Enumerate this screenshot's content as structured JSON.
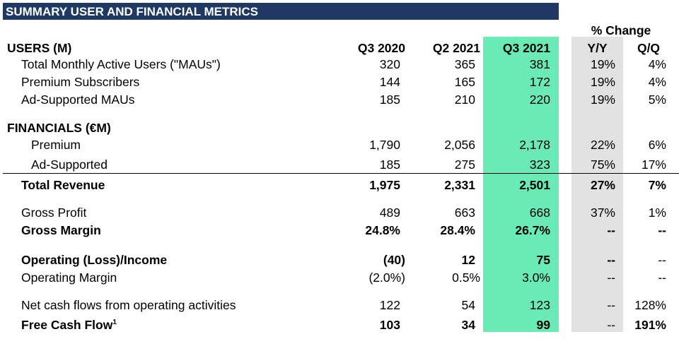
{
  "title": "SUMMARY USER AND FINANCIAL METRICS",
  "pct_change_label": "% Change",
  "users_section": {
    "label": "USERS (M)",
    "columns": [
      "Q3 2020",
      "Q2 2021",
      "Q3 2021",
      "Y/Y",
      "Q/Q"
    ],
    "rows": [
      {
        "label": "Total Monthly Active Users (\"MAUs\")",
        "q3_2020": "320",
        "q2_2021": "365",
        "q3_2021": "381",
        "yy": "19%",
        "qq": "4%"
      },
      {
        "label": "Premium Subscribers",
        "q3_2020": "144",
        "q2_2021": "165",
        "q3_2021": "172",
        "yy": "19%",
        "qq": "4%"
      },
      {
        "label": "Ad-Supported MAUs",
        "q3_2020": "185",
        "q2_2021": "210",
        "q3_2021": "220",
        "yy": "19%",
        "qq": "5%"
      }
    ]
  },
  "financials_section": {
    "label": "FINANCIALS (€M)",
    "rows": [
      {
        "label": "Premium",
        "q3_2020": "1,790",
        "q2_2021": "2,056",
        "q3_2021": "2,178",
        "yy": "22%",
        "qq": "6%"
      },
      {
        "label": "Ad-Supported",
        "q3_2020": "185",
        "q2_2021": "275",
        "q3_2021": "323",
        "yy": "75%",
        "qq": "17%"
      },
      {
        "label": "Total Revenue",
        "q3_2020": "1,975",
        "q2_2021": "2,331",
        "q3_2021": "2,501",
        "yy": "27%",
        "qq": "7%"
      },
      {
        "label": "Gross Profit",
        "q3_2020": "489",
        "q2_2021": "663",
        "q3_2021": "668",
        "yy": "37%",
        "qq": "1%"
      },
      {
        "label": "Gross Margin",
        "q3_2020": "24.8%",
        "q2_2021": "28.4%",
        "q3_2021": "26.7%",
        "yy": "--",
        "qq": "--"
      },
      {
        "label": "Operating (Loss)/Income",
        "q3_2020": "(40)",
        "q2_2021": "12",
        "q3_2021": "75",
        "yy": "--",
        "qq": "--"
      },
      {
        "label": "Operating Margin",
        "q3_2020": "(2.0%)",
        "q2_2021": "0.5%",
        "q3_2021": "3.0%",
        "yy": "--",
        "qq": "--"
      },
      {
        "label": "Net cash flows from operating activities",
        "q3_2020": "122",
        "q2_2021": "54",
        "q3_2021": "123",
        "yy": "--",
        "qq": "128%"
      },
      {
        "label": "Free Cash Flow",
        "footnote": "1",
        "q3_2020": "103",
        "q2_2021": "34",
        "q3_2021": "99",
        "yy": "--",
        "qq": "191%"
      }
    ]
  },
  "colors": {
    "banner": "#1f3864",
    "current_quarter_highlight": "#6aeab4",
    "yy_highlight": "#e2e2e2"
  }
}
